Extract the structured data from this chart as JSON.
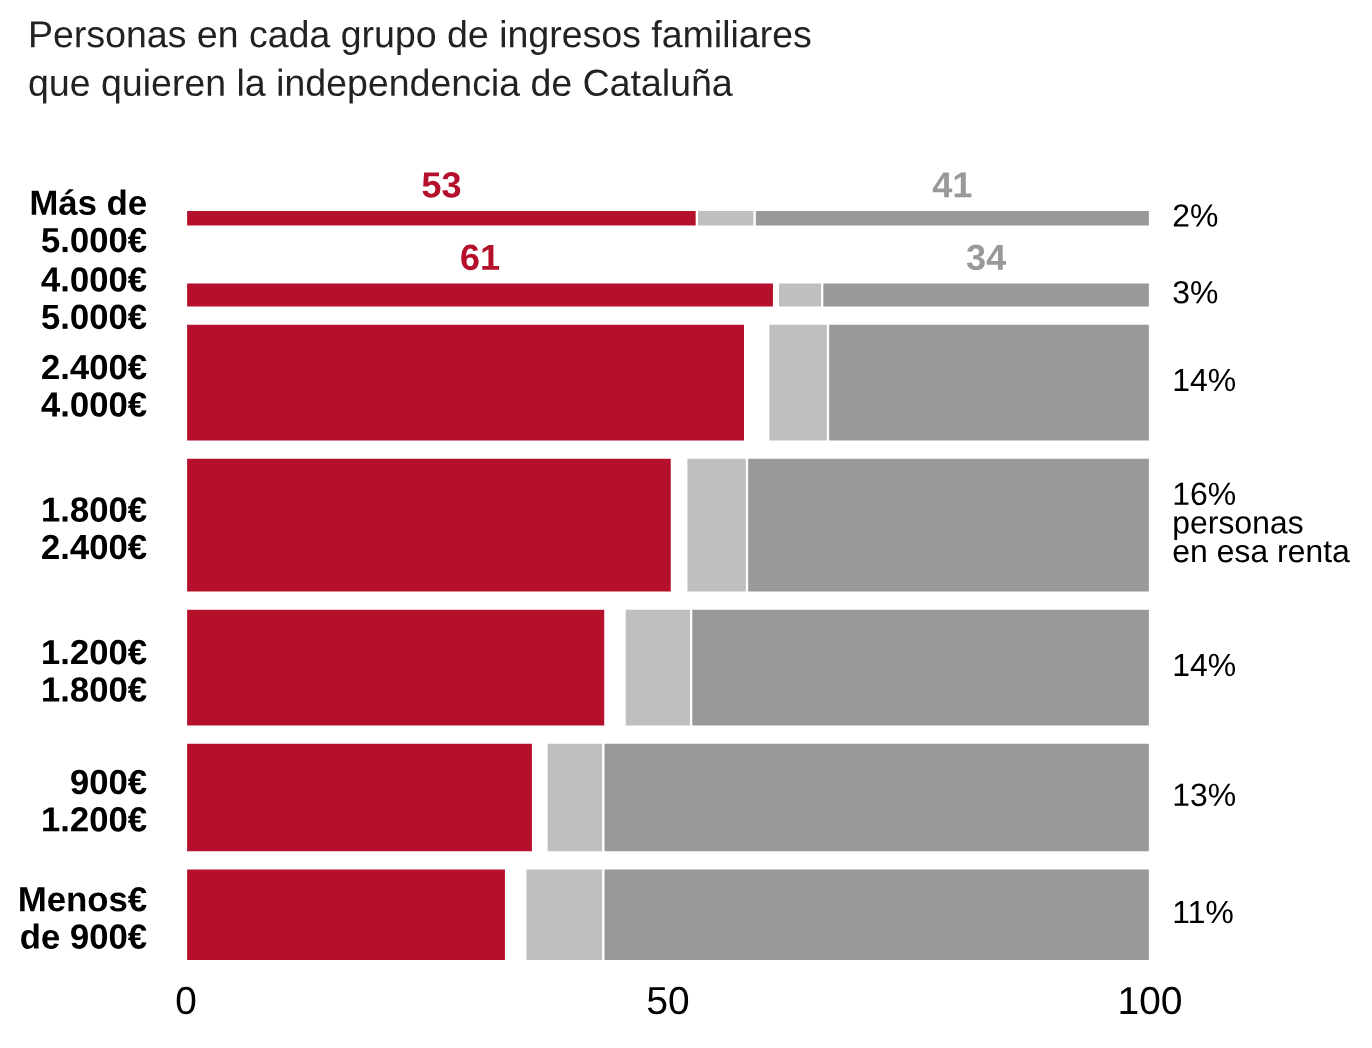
{
  "chart_data": {
    "type": "bar",
    "orientation": "horizontal",
    "title": "Personas en cada grupo de ingresos familiares\nque quieren la independencia de Cataluña",
    "categories": [
      "Más de\n5.000€",
      "4.000€\n5.000€",
      "2.400€\n4.000€",
      "1.800€\n2.400€",
      "1.200€\n1.800€",
      "900€\n1.200€",
      "Menos€\nde 900€"
    ],
    "series": [
      {
        "color": "#b5102b",
        "values": [
          53,
          61,
          58,
          50.4,
          43.5,
          36,
          33.2
        ],
        "base": [
          0,
          0,
          0,
          0,
          0,
          0,
          0
        ],
        "value_labels": [
          "53",
          "61",
          null,
          null,
          null,
          null,
          null
        ]
      },
      {
        "color": "#bfbfbf",
        "values": [
          6,
          4.6,
          6.2,
          6.3,
          6.9,
          5.9,
          8.1
        ],
        "base": [
          53,
          61.4,
          60.4,
          51.9,
          45.5,
          37.4,
          35.2
        ]
      },
      {
        "color": "#999999",
        "values": [
          41,
          34,
          33.4,
          41.8,
          47.6,
          56.7,
          56.7
        ],
        "base": [
          59,
          66,
          66.6,
          58.2,
          52.4,
          43.3,
          43.3
        ],
        "value_labels": [
          "41",
          "34",
          null,
          null,
          null,
          null,
          null
        ]
      }
    ],
    "annotations": [
      "2%",
      "3%",
      "14%",
      "16%\npersonas\nen esa renta",
      "14%",
      "13%",
      "11%"
    ],
    "xlim": [
      0,
      100
    ],
    "xticks": [
      0,
      50,
      100
    ],
    "grid": false,
    "legend": false
  }
}
